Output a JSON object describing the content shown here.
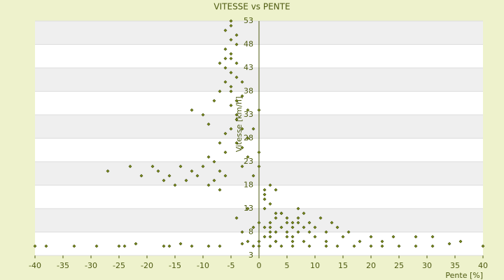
{
  "chart_data": {
    "type": "scatter",
    "title": "VITESSE vs PENTE",
    "x_label": "Pente [%]",
    "y_label": "Vitesse [km/h]",
    "color": "#7a8c1a",
    "x": [
      -40,
      -38,
      -33,
      -29,
      -25,
      -24,
      -22,
      -17,
      -16,
      -14,
      -12,
      -9,
      -7,
      -3,
      -1,
      2,
      4,
      6,
      9,
      12,
      14,
      17,
      20,
      22,
      25,
      28,
      31,
      34,
      36,
      40,
      -27,
      -23,
      -21,
      -19,
      -18,
      -17,
      -16,
      -15,
      -14,
      -13,
      -12,
      -11,
      -10,
      -9,
      -9,
      -8,
      -8,
      -7,
      -7,
      -6,
      -12,
      -10,
      -9,
      -8,
      -7,
      -7,
      -6,
      -6,
      -6,
      -5,
      -5,
      -5,
      -5,
      -5,
      -4,
      -4,
      -4,
      -4,
      -3,
      -3,
      -3,
      -2,
      -2,
      -6,
      -6,
      -5,
      -5,
      -4,
      -4,
      -3,
      -5,
      -6,
      -7,
      -4,
      -3,
      -2,
      -5,
      -6,
      -4,
      -5,
      -1,
      0,
      0,
      1,
      1,
      1,
      2,
      2,
      3,
      3,
      -4,
      -3,
      -2,
      -1,
      0,
      1,
      2,
      3,
      3,
      4,
      4,
      5,
      5,
      5,
      6,
      6,
      6,
      7,
      7,
      7,
      8,
      8,
      9,
      9,
      10,
      11,
      12,
      13,
      2,
      3,
      4,
      5,
      6,
      7,
      8,
      10,
      12,
      14,
      15,
      16,
      18,
      20,
      22,
      24,
      28,
      31,
      0,
      1,
      2,
      3,
      -2,
      -1,
      0,
      0,
      1,
      2
    ],
    "values": [
      5,
      5,
      5,
      5,
      5,
      5,
      5.5,
      5,
      5,
      5.5,
      5,
      5,
      5,
      5.5,
      5,
      5,
      5,
      5,
      5,
      5,
      5,
      5,
      5,
      5,
      5,
      5,
      5,
      5.5,
      6,
      5,
      21,
      22,
      20,
      22,
      21,
      19,
      20,
      18,
      22,
      19,
      21,
      20,
      22,
      18,
      24,
      19,
      23,
      21,
      17,
      20,
      34,
      33,
      31,
      36,
      38,
      44,
      40,
      47,
      51,
      53,
      49,
      45,
      42,
      38,
      48,
      44,
      36,
      32,
      40,
      30,
      26,
      34,
      28,
      29,
      43,
      35,
      46,
      41,
      50,
      37,
      30,
      25,
      27,
      33,
      22,
      24,
      39,
      45,
      27,
      52,
      30,
      34,
      22,
      17,
      15,
      13,
      18,
      14,
      17,
      12,
      11,
      8,
      13,
      9,
      10,
      9,
      10,
      8,
      11,
      9,
      12,
      10,
      8,
      11,
      9,
      10,
      7,
      11,
      8,
      10,
      9,
      12,
      8,
      10,
      9,
      11,
      8,
      10,
      7,
      6,
      12,
      7,
      6,
      13,
      6,
      7,
      6,
      9,
      7,
      8,
      6,
      7,
      6,
      7,
      7,
      7,
      6,
      7,
      8,
      6,
      6,
      20,
      25,
      5,
      16,
      9
    ],
    "xlim": [
      -40,
      40
    ],
    "xticks": [
      -40,
      -35,
      -30,
      -25,
      -20,
      -15,
      -10,
      -5,
      0,
      5,
      10,
      15,
      20,
      25,
      30,
      35,
      40
    ],
    "ylim": [
      3,
      53
    ],
    "yticks": [
      3,
      8,
      13,
      18,
      23,
      28,
      33,
      38,
      43,
      48,
      53
    ],
    "grid": true
  }
}
